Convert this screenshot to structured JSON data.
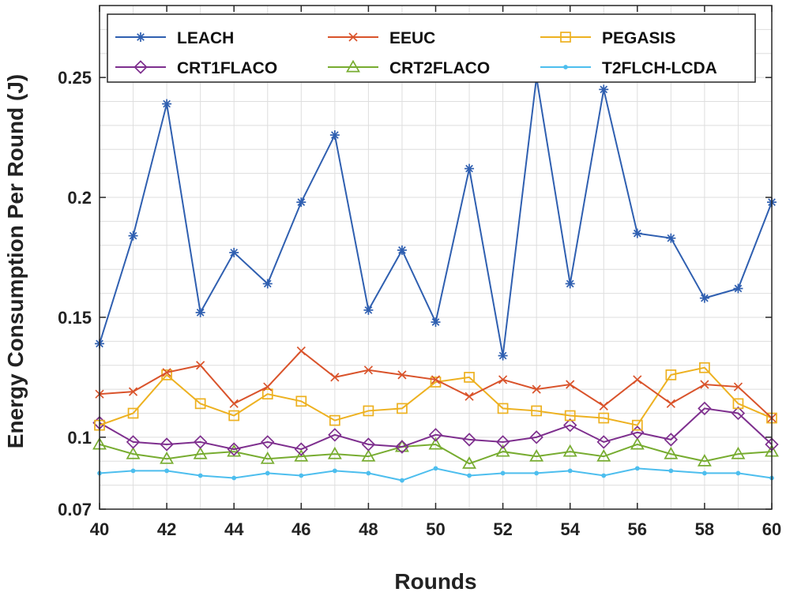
{
  "chart_data": {
    "type": "line",
    "xlabel": "Rounds",
    "ylabel": "Energy Consumption Per Round (J)",
    "xlim": [
      40,
      60
    ],
    "ylim": [
      0.07,
      0.28
    ],
    "xticks": [
      40,
      42,
      44,
      46,
      48,
      50,
      52,
      54,
      56,
      58,
      60
    ],
    "xtick_labels": [
      "40",
      "42",
      "44",
      "46",
      "48",
      "50",
      "52",
      "54",
      "56",
      "58",
      "60"
    ],
    "yticks": [
      0.07,
      0.1,
      0.15,
      0.2,
      0.25
    ],
    "ytick_labels": [
      "0.07",
      "0.1",
      "0.15",
      "0.2",
      "0.25"
    ],
    "grid": true,
    "legend_position": "top",
    "x": [
      40,
      41,
      42,
      43,
      44,
      45,
      46,
      47,
      48,
      49,
      50,
      51,
      52,
      53,
      54,
      55,
      56,
      57,
      58,
      59,
      60
    ],
    "series": [
      {
        "name": "LEACH",
        "color": "#2f5fb0",
        "marker": "asterisk",
        "values": [
          0.139,
          0.184,
          0.239,
          0.152,
          0.177,
          0.164,
          0.198,
          0.226,
          0.153,
          0.178,
          0.148,
          0.212,
          0.134,
          0.25,
          0.164,
          0.245,
          0.185,
          0.183,
          0.158,
          0.162,
          0.198
        ]
      },
      {
        "name": "EEUC",
        "color": "#d9532b",
        "marker": "x",
        "values": [
          0.118,
          0.119,
          0.127,
          0.13,
          0.114,
          0.121,
          0.136,
          0.125,
          0.128,
          0.126,
          0.124,
          0.117,
          0.124,
          0.12,
          0.122,
          0.113,
          0.124,
          0.114,
          0.122,
          0.121,
          0.108
        ]
      },
      {
        "name": "PEGASIS",
        "color": "#edb120",
        "marker": "square",
        "values": [
          0.105,
          0.11,
          0.126,
          0.114,
          0.109,
          0.118,
          0.115,
          0.107,
          0.111,
          0.112,
          0.123,
          0.125,
          0.112,
          0.111,
          0.109,
          0.108,
          0.105,
          0.126,
          0.129,
          0.114,
          0.108
        ]
      },
      {
        "name": "CRT1FLACO",
        "color": "#7e2f8e",
        "marker": "diamond",
        "values": [
          0.106,
          0.098,
          0.097,
          0.098,
          0.095,
          0.098,
          0.095,
          0.101,
          0.097,
          0.096,
          0.101,
          0.099,
          0.098,
          0.1,
          0.105,
          0.098,
          0.102,
          0.099,
          0.112,
          0.11,
          0.097
        ]
      },
      {
        "name": "CRT2FLACO",
        "color": "#77ac30",
        "marker": "triangle",
        "values": [
          0.097,
          0.093,
          0.091,
          0.093,
          0.094,
          0.091,
          0.092,
          0.093,
          0.092,
          0.096,
          0.097,
          0.089,
          0.094,
          0.092,
          0.094,
          0.092,
          0.097,
          0.093,
          0.09,
          0.093,
          0.094
        ]
      },
      {
        "name": "T2FLCH-LCDA",
        "color": "#4dbeee",
        "marker": "dot",
        "values": [
          0.085,
          0.086,
          0.086,
          0.084,
          0.083,
          0.085,
          0.084,
          0.086,
          0.085,
          0.082,
          0.087,
          0.084,
          0.085,
          0.085,
          0.086,
          0.084,
          0.087,
          0.086,
          0.085,
          0.085,
          0.083
        ]
      }
    ]
  }
}
